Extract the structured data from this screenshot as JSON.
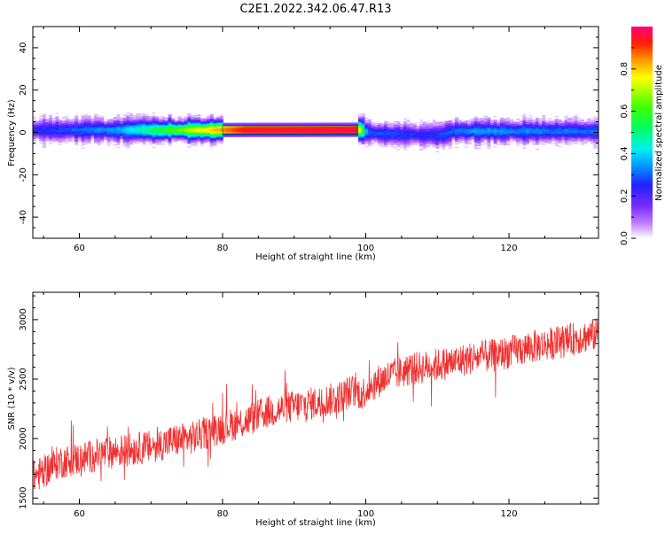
{
  "title": "C2E1.2022.342.06.47.R13",
  "chart_data": [
    {
      "type": "heatmap",
      "xlabel": "Height of straight line (km)",
      "ylabel": "Frequency (Hz)",
      "xlim": [
        53.5,
        132.5
      ],
      "ylim": [
        -50,
        50
      ],
      "xticks": [
        60,
        80,
        100,
        120
      ],
      "yticks": [
        -40,
        -20,
        0,
        20,
        40
      ],
      "colorbar": {
        "label": "Normalized spectral amplitude",
        "range": [
          0,
          1
        ],
        "ticks": [
          "0.0",
          "0.2",
          "0.4",
          "0.6",
          "0.8"
        ]
      },
      "band_center_hz": [
        {
          "x": 53.5,
          "y": 1.0
        },
        {
          "x": 99.0,
          "y": 1.2
        },
        {
          "x": 101.0,
          "y": -0.5
        },
        {
          "x": 110.0,
          "y": -1.5
        },
        {
          "x": 112.0,
          "y": 0.5
        },
        {
          "x": 132.5,
          "y": 0.5
        }
      ],
      "peak_amplitude": [
        {
          "x": 53.5,
          "y": 0.25
        },
        {
          "x": 65,
          "y": 0.35
        },
        {
          "x": 72,
          "y": 0.6
        },
        {
          "x": 78,
          "y": 0.8
        },
        {
          "x": 83,
          "y": 0.95
        },
        {
          "x": 98.5,
          "y": 0.97
        },
        {
          "x": 100,
          "y": 0.3
        },
        {
          "x": 108,
          "y": 0.25
        },
        {
          "x": 115,
          "y": 0.35
        },
        {
          "x": 132.5,
          "y": 0.3
        }
      ]
    },
    {
      "type": "line",
      "xlabel": "Height of straight line (km)",
      "ylabel": "SNR (10 * v/v)",
      "xlim": [
        53.5,
        132.5
      ],
      "ylim": [
        1450,
        3230
      ],
      "xticks": [
        60,
        80,
        100,
        120
      ],
      "yticks": [
        1500,
        2000,
        2500,
        3000
      ],
      "color": "#f03030",
      "series": [
        {
          "x": [
            53.5,
            55,
            57,
            60,
            63,
            66,
            70,
            73,
            76,
            80,
            83,
            86,
            90,
            93,
            96,
            98,
            99.5,
            101,
            103,
            106,
            109,
            112,
            115,
            118,
            121,
            124,
            127,
            130,
            132.5
          ],
          "y": [
            1680,
            1720,
            1800,
            1830,
            1870,
            1900,
            1930,
            1980,
            2010,
            2100,
            2140,
            2220,
            2270,
            2300,
            2340,
            2400,
            2380,
            2460,
            2520,
            2580,
            2610,
            2640,
            2680,
            2700,
            2740,
            2780,
            2810,
            2850,
            2880
          ],
          "noise_amplitude": 140
        }
      ]
    }
  ]
}
